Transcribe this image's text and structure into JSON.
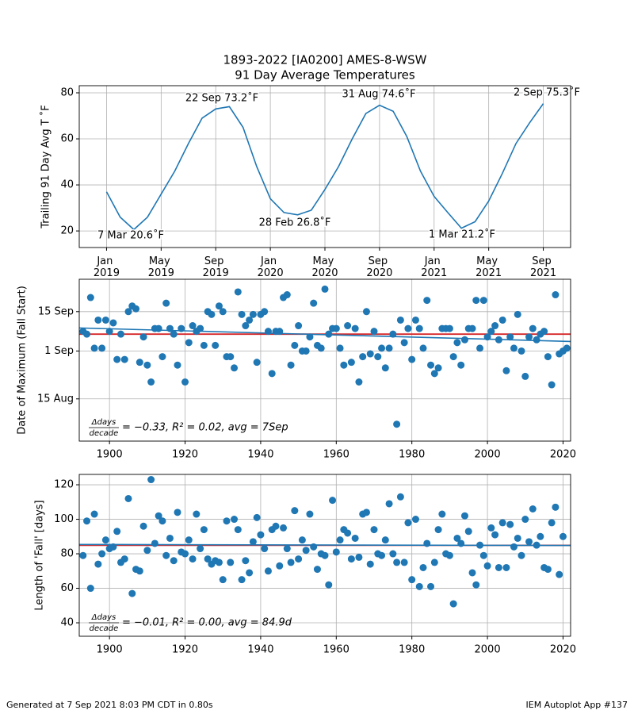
{
  "chart_data": [
    {
      "type": "line",
      "title": "1893-2022 [IA0200] AMES-8-WSW",
      "subtitle": "91 Day Average Temperatures",
      "y_label": "Trailing 91 Day Avg T ˚F",
      "x": [
        "2019-01",
        "2019-02",
        "2019-03",
        "2019-04",
        "2019-05",
        "2019-06",
        "2019-07",
        "2019-08",
        "2019-09",
        "2019-10",
        "2019-11",
        "2019-12",
        "2020-01",
        "2020-02",
        "2020-03",
        "2020-04",
        "2020-05",
        "2020-06",
        "2020-07",
        "2020-08",
        "2020-09",
        "2020-10",
        "2020-11",
        "2020-12",
        "2021-01",
        "2021-02",
        "2021-03",
        "2021-04",
        "2021-05",
        "2021-06",
        "2021-07",
        "2021-08",
        "2021-09"
      ],
      "series": [
        {
          "color": "#1f77b4",
          "values": [
            37,
            26,
            20.6,
            26,
            36,
            46,
            58,
            69,
            73,
            74,
            65,
            48,
            34,
            28,
            27,
            29,
            38,
            48,
            60,
            71,
            74.6,
            72,
            61,
            46,
            35,
            28,
            21.2,
            24,
            33,
            45,
            58,
            67,
            75.3
          ]
        }
      ],
      "annotations": [
        "7 Mar 20.6˚F",
        "22 Sep 73.2˚F",
        "28 Feb 26.8˚F",
        "31 Aug 74.6˚F",
        "1 Mar 21.2˚F",
        "2 Sep 75.3˚F"
      ],
      "xlim": [
        "2018-11",
        "2021-11"
      ],
      "xticks": [
        {
          "value": "2019-01",
          "label": "Jan 2019"
        },
        {
          "value": "2019-05",
          "label": "May 2019"
        },
        {
          "value": "2019-09",
          "label": "Sep 2019"
        },
        {
          "value": "2020-01",
          "label": "Jan 2020"
        },
        {
          "value": "2020-05",
          "label": "May 2020"
        },
        {
          "value": "2020-09",
          "label": "Sep 2020"
        },
        {
          "value": "2021-01",
          "label": "Jan 2021"
        },
        {
          "value": "2021-05",
          "label": "May 2021"
        },
        {
          "value": "2021-09",
          "label": "Sep 2021"
        }
      ],
      "ylim": [
        12.8,
        83.1
      ],
      "yticks": [
        20,
        40,
        60,
        80
      ],
      "grid": true
    },
    {
      "type": "scatter",
      "y_label": "Date of Maximum (Fall Start)",
      "x": [
        1893,
        1894,
        1895,
        1896,
        1897,
        1898,
        1899,
        1900,
        1901,
        1902,
        1903,
        1904,
        1905,
        1906,
        1907,
        1908,
        1909,
        1910,
        1911,
        1912,
        1913,
        1914,
        1915,
        1916,
        1917,
        1918,
        1919,
        1920,
        1921,
        1922,
        1923,
        1924,
        1925,
        1926,
        1927,
        1928,
        1929,
        1930,
        1931,
        1932,
        1933,
        1934,
        1935,
        1936,
        1937,
        1938,
        1939,
        1940,
        1941,
        1942,
        1943,
        1944,
        1945,
        1946,
        1947,
        1948,
        1949,
        1950,
        1951,
        1952,
        1953,
        1954,
        1955,
        1956,
        1957,
        1958,
        1959,
        1960,
        1961,
        1962,
        1963,
        1964,
        1965,
        1966,
        1967,
        1968,
        1969,
        1970,
        1971,
        1972,
        1973,
        1974,
        1975,
        1976,
        1977,
        1978,
        1979,
        1980,
        1981,
        1982,
        1983,
        1984,
        1985,
        1986,
        1987,
        1988,
        1989,
        1990,
        1991,
        1992,
        1993,
        1994,
        1995,
        1996,
        1997,
        1998,
        1999,
        2000,
        2001,
        2002,
        2003,
        2004,
        2005,
        2006,
        2007,
        2008,
        2009,
        2010,
        2011,
        2012,
        2013,
        2014,
        2015,
        2016,
        2017,
        2018,
        2019,
        2020,
        2021
      ],
      "series": [
        {
          "color": "#1f77b4",
          "values": [
            251,
            250,
            263,
            245,
            255,
            245,
            255,
            251,
            254,
            241,
            250,
            241,
            258,
            260,
            259,
            240,
            249,
            239,
            233,
            252,
            252,
            242,
            261,
            252,
            250,
            239,
            252,
            233,
            247,
            253,
            251,
            252,
            246,
            258,
            257,
            246,
            260,
            258,
            242,
            242,
            238,
            265,
            257,
            253,
            255,
            257,
            240,
            257,
            258,
            251,
            236,
            251,
            251,
            263,
            264,
            239,
            246,
            253,
            244,
            244,
            249,
            261,
            246,
            245,
            266,
            250,
            252,
            252,
            245,
            239,
            253,
            240,
            252,
            233,
            242,
            258,
            243,
            251,
            242,
            245,
            238,
            245,
            250,
            218,
            255,
            247,
            252,
            241,
            255,
            252,
            245,
            262,
            239,
            236,
            238,
            252,
            252,
            252,
            242,
            247,
            239,
            248,
            252,
            252,
            262,
            245,
            262,
            249,
            251,
            253,
            248,
            255,
            237,
            249,
            245,
            257,
            244,
            235,
            249,
            252,
            248,
            250,
            251,
            242,
            232,
            264,
            243,
            244,
            245
          ]
        }
      ],
      "trend_line": {
        "color": "#1f77b4",
        "values": [
          252.2,
          247.4
        ]
      },
      "mean_line": {
        "color": "#d62728",
        "value": 250
      },
      "annotation": {
        "numerator": "Δdays",
        "denominator": "decade",
        "text": "= −0.33, R² = 0.02, avg = 7Sep"
      },
      "xlim": [
        1892,
        2022
      ],
      "xticks": [
        1900,
        1920,
        1940,
        1960,
        1980,
        2000,
        2020
      ],
      "ylim": [
        212,
        269.5
      ],
      "yticks": [
        {
          "value": 227,
          "label": "15 Aug"
        },
        {
          "value": 244,
          "label": "1 Sep"
        },
        {
          "value": 258,
          "label": "15 Sep"
        }
      ],
      "grid": true
    },
    {
      "type": "scatter",
      "y_label": "Length of 'Fall' [days]",
      "x": [
        1893,
        1894,
        1895,
        1896,
        1897,
        1898,
        1899,
        1900,
        1901,
        1902,
        1903,
        1904,
        1905,
        1906,
        1907,
        1908,
        1909,
        1910,
        1911,
        1912,
        1913,
        1914,
        1915,
        1916,
        1917,
        1918,
        1919,
        1920,
        1921,
        1922,
        1923,
        1924,
        1925,
        1926,
        1927,
        1928,
        1929,
        1930,
        1931,
        1932,
        1933,
        1934,
        1935,
        1936,
        1937,
        1938,
        1939,
        1940,
        1941,
        1942,
        1943,
        1944,
        1945,
        1946,
        1947,
        1948,
        1949,
        1950,
        1951,
        1952,
        1953,
        1954,
        1955,
        1956,
        1957,
        1958,
        1959,
        1960,
        1961,
        1962,
        1963,
        1964,
        1965,
        1966,
        1967,
        1968,
        1969,
        1970,
        1971,
        1972,
        1973,
        1974,
        1975,
        1976,
        1977,
        1978,
        1979,
        1980,
        1981,
        1982,
        1983,
        1984,
        1985,
        1986,
        1987,
        1988,
        1989,
        1990,
        1991,
        1992,
        1993,
        1994,
        1995,
        1996,
        1997,
        1998,
        1999,
        2000,
        2001,
        2002,
        2003,
        2004,
        2005,
        2006,
        2007,
        2008,
        2009,
        2010,
        2011,
        2012,
        2013,
        2014,
        2015,
        2016,
        2017,
        2018,
        2019,
        2020
      ],
      "series": [
        {
          "color": "#1f77b4",
          "values": [
            79,
            99,
            60,
            103,
            74,
            80,
            88,
            83,
            84,
            93,
            75,
            77,
            112,
            57,
            71,
            70,
            96,
            82,
            123,
            86,
            102,
            99,
            79,
            89,
            76,
            104,
            81,
            80,
            88,
            77,
            103,
            83,
            94,
            77,
            74,
            76,
            75,
            65,
            99,
            75,
            100,
            94,
            65,
            76,
            69,
            87,
            101,
            91,
            83,
            70,
            94,
            96,
            73,
            95,
            83,
            75,
            105,
            77,
            88,
            82,
            103,
            84,
            71,
            80,
            79,
            62,
            111,
            81,
            88,
            94,
            92,
            77,
            89,
            78,
            103,
            104,
            74,
            94,
            80,
            79,
            88,
            109,
            80,
            75,
            113,
            75,
            98,
            65,
            100,
            61,
            72,
            86,
            61,
            75,
            94,
            103,
            80,
            79,
            51,
            89,
            86,
            102,
            93,
            69,
            62,
            85,
            79,
            73,
            95,
            91,
            72,
            98,
            72,
            97,
            84,
            89,
            79,
            100,
            87,
            106,
            85,
            90,
            72,
            71,
            98,
            107,
            68,
            90
          ]
        }
      ],
      "trend_line": {
        "color": "#1f77b4",
        "values": [
          85.4,
          84.8
        ]
      },
      "mean_line": {
        "color": "#d62728",
        "value": 84.9
      },
      "annotation": {
        "numerator": "Δdays",
        "denominator": "decade",
        "text": "= −0.01, R² = 0.00, avg = 84.9d"
      },
      "xlim": [
        1892,
        2022
      ],
      "xticks": [
        1900,
        1920,
        1940,
        1960,
        1980,
        2000,
        2020
      ],
      "ylim": [
        32.2,
        126
      ],
      "yticks": [
        40,
        60,
        80,
        100,
        120
      ],
      "grid": true
    }
  ],
  "footer_left": "Generated at 7 Sep 2021 8:03 PM CDT in 0.80s",
  "footer_right": "IEM Autoplot App #137"
}
